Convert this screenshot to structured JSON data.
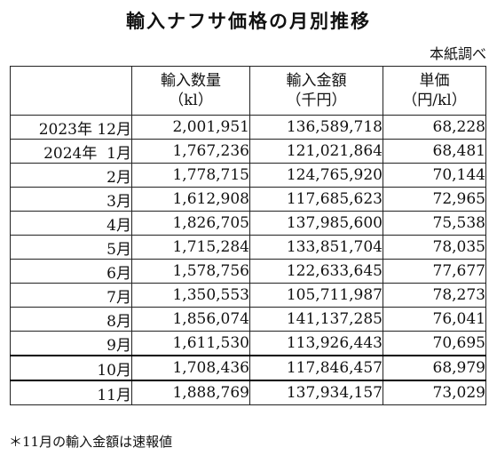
{
  "title": "輸入ナフサ価格の月別推移",
  "source": "本紙調べ",
  "table": {
    "headers": [
      {
        "line1": "輸入数量",
        "line2": "（kl）"
      },
      {
        "line1": "輸入金額",
        "line2": "（千円）"
      },
      {
        "line1": "単価",
        "line2": "（円/kl）"
      }
    ],
    "rows": [
      {
        "label": "2023年 12月",
        "qty": "2,001,951",
        "amount": "136,589,718",
        "price": "68,228"
      },
      {
        "label": "2024年  1月",
        "qty": "1,767,236",
        "amount": "121,021,864",
        "price": "68,481"
      },
      {
        "label": "2月",
        "qty": "1,778,715",
        "amount": "124,765,920",
        "price": "70,144"
      },
      {
        "label": "3月",
        "qty": "1,612,908",
        "amount": "117,685,623",
        "price": "72,965"
      },
      {
        "label": "4月",
        "qty": "1,826,705",
        "amount": "137,985,600",
        "price": "75,538"
      },
      {
        "label": "5月",
        "qty": "1,715,284",
        "amount": "133,851,704",
        "price": "78,035"
      },
      {
        "label": "6月",
        "qty": "1,578,756",
        "amount": "122,633,645",
        "price": "77,677"
      },
      {
        "label": "7月",
        "qty": "1,350,553",
        "amount": "105,711,987",
        "price": "78,273"
      },
      {
        "label": "8月",
        "qty": "1,856,074",
        "amount": "141,137,285",
        "price": "76,041"
      },
      {
        "label": "9月",
        "qty": "1,611,530",
        "amount": "113,926,443",
        "price": "70,695"
      },
      {
        "label": "10月",
        "qty": "1,708,436",
        "amount": "117,846,457",
        "price": "68,979"
      },
      {
        "label": "11月",
        "qty": "1,888,769",
        "amount": "137,934,157",
        "price": "73,029"
      }
    ]
  },
  "footnote": "＊11月の輸入金額は速報値"
}
